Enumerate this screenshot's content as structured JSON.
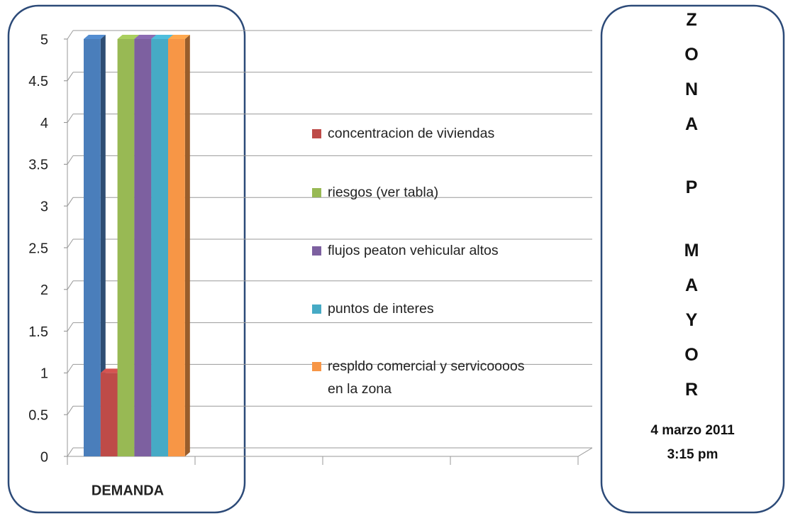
{
  "chart_data": {
    "type": "bar3d",
    "categories": [
      "DEMANDA",
      null,
      null,
      null
    ],
    "series": [
      {
        "name": null,
        "color": "#4a7ebb",
        "values": [
          5,
          null,
          null,
          null
        ]
      },
      {
        "name": "concentracion de viviendas",
        "color": "#be4b48",
        "values": [
          1,
          null,
          null,
          null
        ]
      },
      {
        "name": "riesgos (ver tabla)",
        "color": "#98b954",
        "values": [
          5,
          null,
          null,
          null
        ]
      },
      {
        "name": "flujos peaton vehicular altos",
        "color": "#7d60a0",
        "values": [
          5,
          null,
          null,
          null
        ]
      },
      {
        "name": "puntos de interes",
        "color": "#46aac5",
        "values": [
          5,
          null,
          null,
          null
        ]
      },
      {
        "name": "respldo comercial y servicoooos en la zona",
        "color": "#f79646",
        "values": [
          5,
          null,
          null,
          null
        ]
      }
    ],
    "ylim": [
      0,
      5
    ],
    "yticks": [
      0,
      0.5,
      1,
      1.5,
      2,
      2.5,
      3,
      3.5,
      4,
      4.5,
      5
    ],
    "grid": true,
    "annotations": [
      "ZONA",
      "P",
      "MAYOR",
      "4 marzo 2011",
      "3:15 pm"
    ]
  }
}
